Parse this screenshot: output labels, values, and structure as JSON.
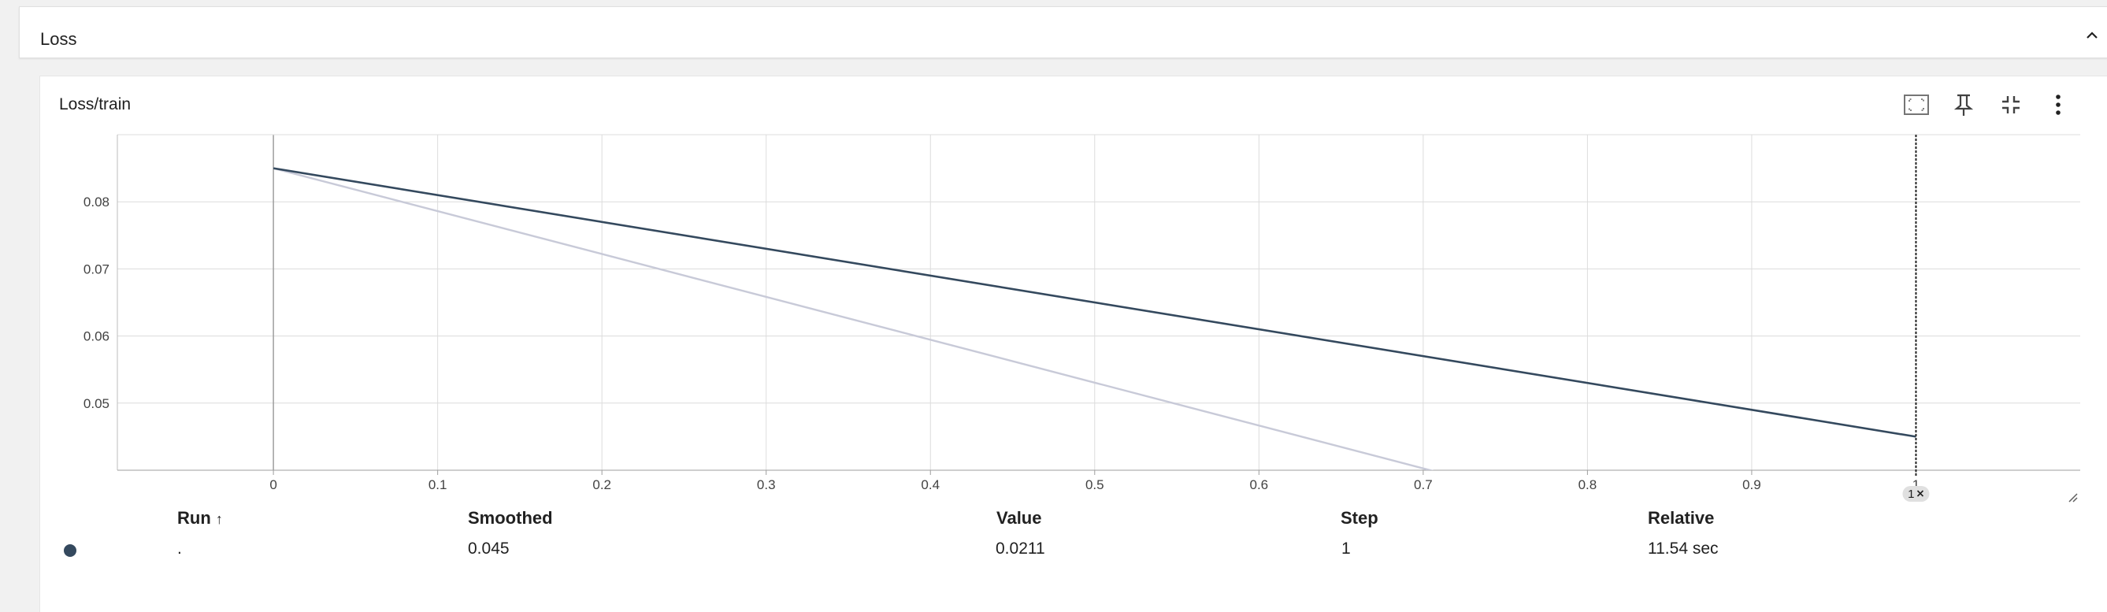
{
  "group": {
    "title": "Loss"
  },
  "chart": {
    "title": "Loss/train"
  },
  "toolbar_icons": [
    "fit-to-data-icon",
    "pin-icon",
    "collapse-icon",
    "more-vert-icon"
  ],
  "colors": {
    "smoothed_line": "#34495e",
    "raw_line": "#c8cad8",
    "grid": "#dcdcdc",
    "run_dot": "#34495e"
  },
  "chart_data": {
    "type": "line",
    "title": "Loss/train",
    "xlabel": "",
    "ylabel": "",
    "xlim": [
      -0.095,
      1.1
    ],
    "ylim": [
      0.04,
      0.09
    ],
    "x_ticks": [
      "0",
      "0.1",
      "0.2",
      "0.3",
      "0.4",
      "0.5",
      "0.6",
      "0.7",
      "0.8",
      "0.9",
      "1"
    ],
    "y_ticks": [
      "0.05",
      "0.06",
      "0.07",
      "0.08"
    ],
    "grid": true,
    "series": [
      {
        "name": "smoothed",
        "x": [
          0,
          1
        ],
        "y": [
          0.085,
          0.045
        ]
      },
      {
        "name": "value",
        "x": [
          0,
          1
        ],
        "y": [
          0.085,
          0.0211
        ]
      }
    ],
    "cursor": {
      "step": 1,
      "badge": "1"
    }
  },
  "table": {
    "headers": {
      "run": "Run",
      "run_sort": "↑",
      "smoothed": "Smoothed",
      "value": "Value",
      "step": "Step",
      "relative": "Relative"
    },
    "rows": [
      {
        "run": ".",
        "smoothed": "0.045",
        "value": "0.0211",
        "step": "1",
        "relative": "11.54 sec"
      }
    ]
  }
}
